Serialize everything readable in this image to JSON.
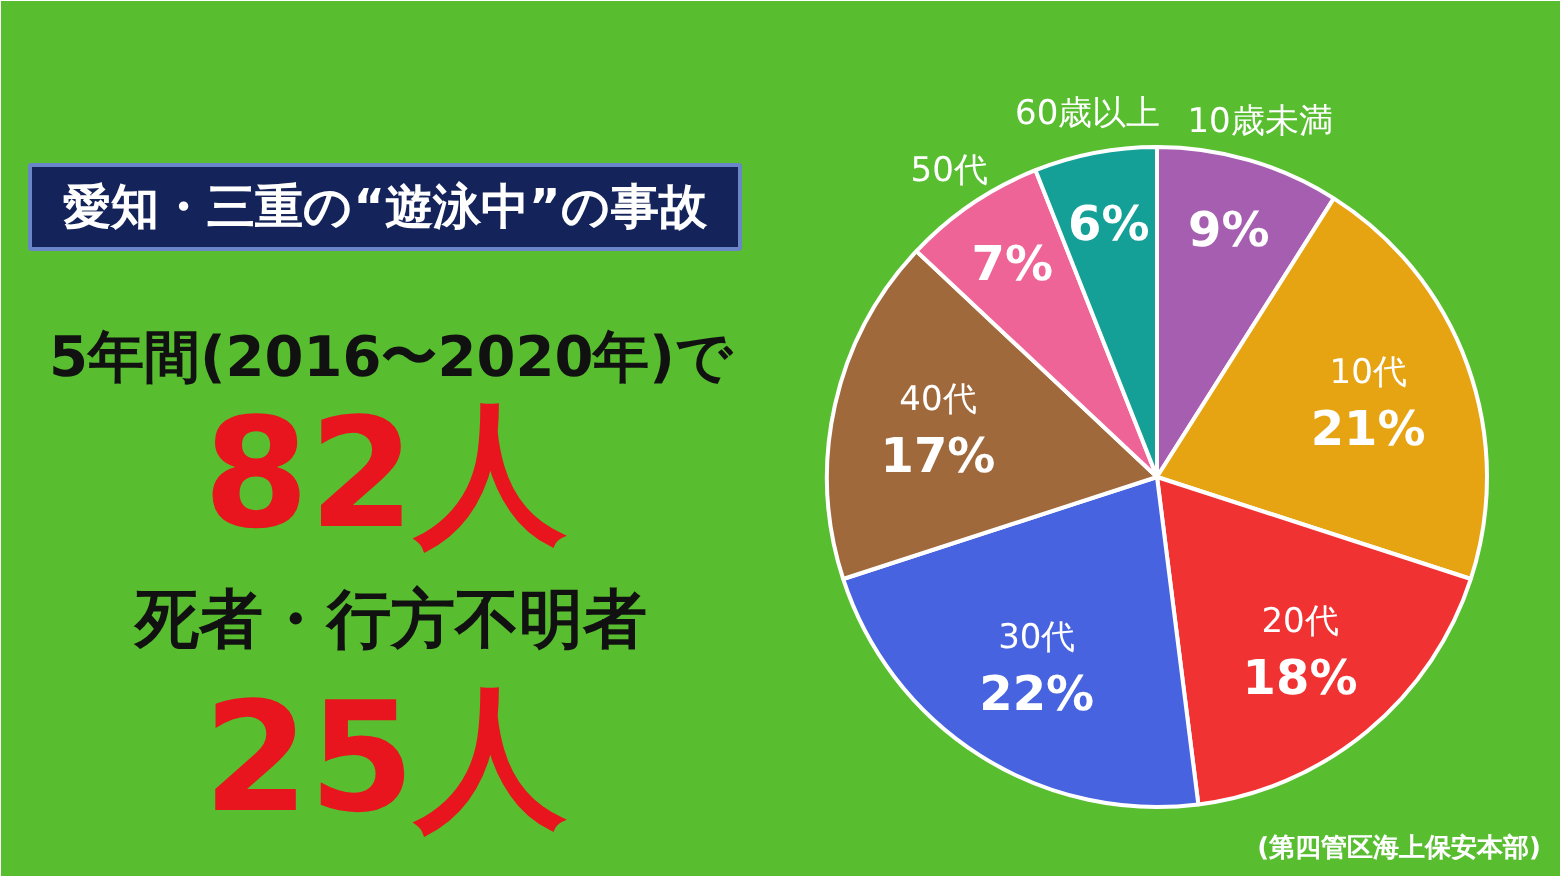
{
  "chart_data": {
    "type": "pie",
    "title": "愛知・三重の“遊泳中”の事故",
    "categories": [
      "10歳未満",
      "10代",
      "20代",
      "30代",
      "40代",
      "50代",
      "60歳以上"
    ],
    "values": [
      9,
      21,
      18,
      22,
      17,
      7,
      6
    ],
    "colors": [
      "#a65fb0",
      "#e6a312",
      "#f03232",
      "#4763e0",
      "#a0693c",
      "#ef6496",
      "#14a096"
    ],
    "value_labels": [
      "9%",
      "21%",
      "18%",
      "22%",
      "17%",
      "7%",
      "6%"
    ],
    "annotations": [
      "5年間(2016〜2020年)で",
      "82人",
      "死者・行方不明者",
      "25人",
      "(第四管区海上保安本部)"
    ]
  }
}
